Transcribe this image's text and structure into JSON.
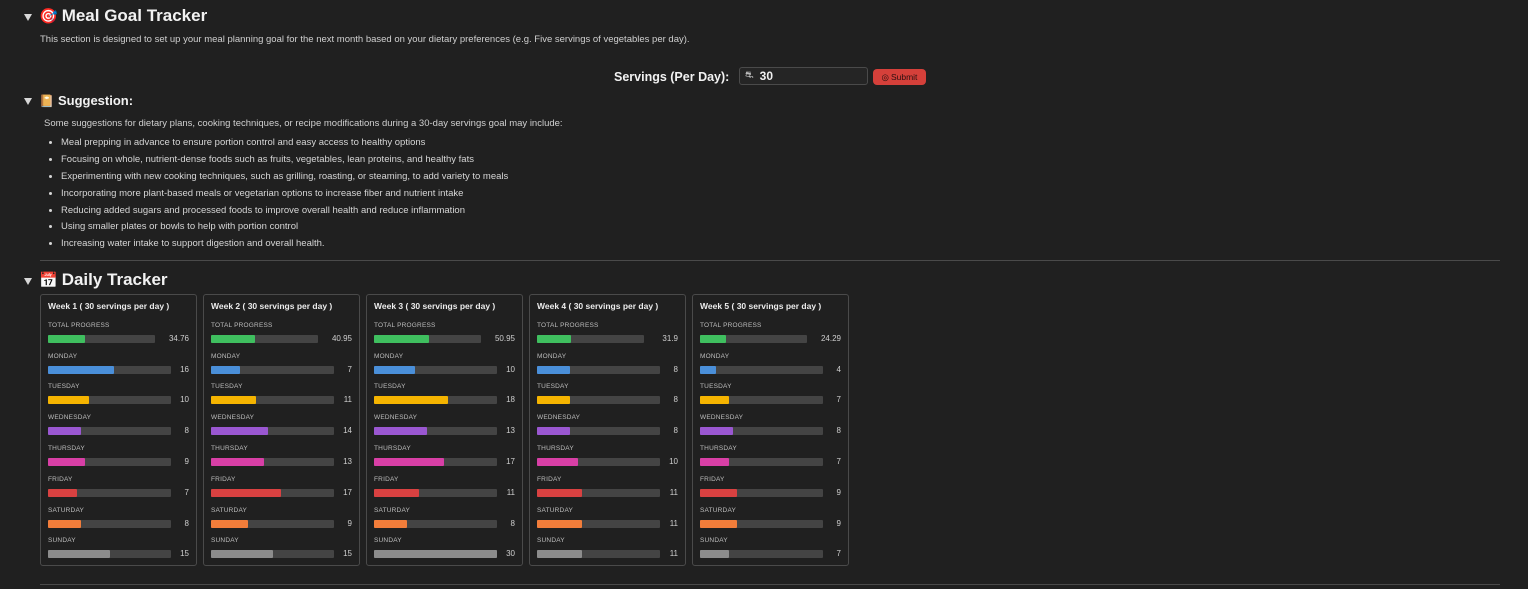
{
  "header": {
    "title": "Meal Goal Tracker",
    "icon": "🎯",
    "description": "This section is designed to set up your meal planning goal for the next month based on your dietary preferences (e.g. Five servings of vegetables per day)."
  },
  "servings": {
    "label": "Servings (Per Day):",
    "value": "30",
    "input_icon": "⛐",
    "submit_label": "Submit",
    "submit_icon": "◎"
  },
  "suggestion": {
    "title": "Suggestion:",
    "icon": "📔",
    "intro": "Some suggestions for dietary plans, cooking techniques, or recipe modifications during a 30-day servings goal may include:",
    "items": [
      "Meal prepping in advance to ensure portion control and easy access to healthy options",
      "Focusing on whole, nutrient-dense foods such as fruits, vegetables, lean proteins, and healthy fats",
      "Experimenting with new cooking techniques, such as grilling, roasting, or steaming, to add variety to meals",
      "Incorporating more plant-based meals or vegetarian options to increase fiber and nutrient intake",
      "Reducing added sugars and processed foods to improve overall health and reduce inflammation",
      "Using smaller plates or bowls to help with portion control",
      "Increasing water intake to support digestion and overall health."
    ]
  },
  "tracker": {
    "title": "Daily Tracker",
    "icon": "📅",
    "goal": 30,
    "row_labels": [
      "TOTAL PROGRESS",
      "MONDAY",
      "TUESDAY",
      "WEDNESDAY",
      "THURSDAY",
      "FRIDAY",
      "SATURDAY",
      "SUNDAY"
    ],
    "colors": [
      "#3fbf5f",
      "#4a8fd9",
      "#f5b400",
      "#9a57d1",
      "#d83fa6",
      "#d94141",
      "#f27d3a",
      "#8c8c8c"
    ],
    "weeks": [
      {
        "title": "Week 1 ( 30 servings per day )",
        "total": "34.76",
        "days": [
          16,
          10,
          8,
          9,
          7,
          8,
          15
        ]
      },
      {
        "title": "Week 2 ( 30 servings per day )",
        "total": "40.95",
        "days": [
          7,
          11,
          14,
          13,
          17,
          9,
          15
        ]
      },
      {
        "title": "Week 3 ( 30 servings per day )",
        "total": "50.95",
        "days": [
          10,
          18,
          13,
          17,
          11,
          8,
          30
        ]
      },
      {
        "title": "Week 4 ( 30 servings per day )",
        "total": "31.9",
        "days": [
          8,
          8,
          8,
          10,
          11,
          11,
          11
        ]
      },
      {
        "title": "Week 5 ( 30 servings per day )",
        "total": "24.29",
        "days": [
          4,
          7,
          8,
          7,
          9,
          9,
          7
        ]
      }
    ]
  }
}
